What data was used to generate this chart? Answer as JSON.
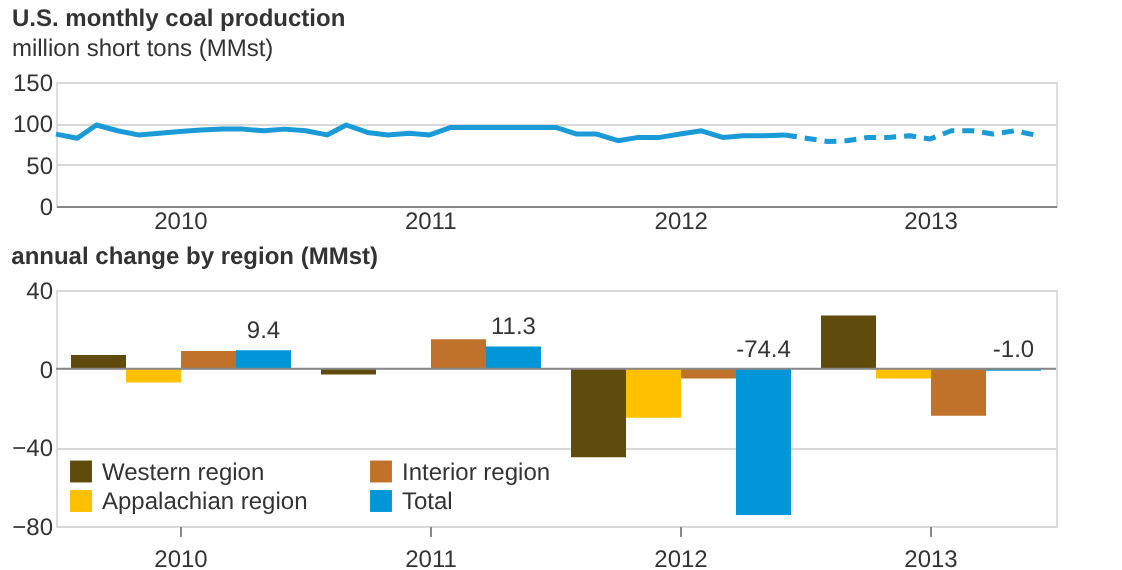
{
  "chart_data": [
    {
      "type": "line",
      "title": "U.S. monthly coal production",
      "subtitle": "million short tons (MMst)",
      "x": [
        "2010-01",
        "2010-02",
        "2010-03",
        "2010-04",
        "2010-05",
        "2010-06",
        "2010-07",
        "2010-08",
        "2010-09",
        "2010-10",
        "2010-11",
        "2010-12",
        "2011-01",
        "2011-02",
        "2011-03",
        "2011-04",
        "2011-05",
        "2011-06",
        "2011-07",
        "2011-08",
        "2011-09",
        "2011-10",
        "2011-11",
        "2011-12",
        "2012-01",
        "2012-02",
        "2012-03",
        "2012-04",
        "2012-05",
        "2012-06",
        "2012-07",
        "2012-08",
        "2012-09",
        "2012-10",
        "2012-11",
        "2012-12",
        "2013-01",
        "2013-02",
        "2013-03",
        "2013-04",
        "2013-05",
        "2013-06",
        "2013-07",
        "2013-08",
        "2013-09",
        "2013-10",
        "2013-11",
        "2013-12"
      ],
      "series": [
        {
          "color": "#1a9ad6",
          "line_style": "solid",
          "values": [
            87,
            82,
            98,
            91,
            86,
            88,
            90,
            92,
            93,
            93,
            91,
            93,
            91,
            86,
            98,
            89,
            86,
            88,
            86,
            95,
            95,
            95,
            95,
            95,
            95,
            87,
            87,
            79,
            83,
            83,
            87,
            91,
            83,
            85,
            85,
            86,
            null,
            null,
            null,
            null,
            null,
            null,
            null,
            null,
            null,
            null,
            null,
            null
          ]
        },
        {
          "color": "#1a9ad6",
          "line_style": "dashed",
          "values": [
            null,
            null,
            null,
            null,
            null,
            null,
            null,
            null,
            null,
            null,
            null,
            null,
            null,
            null,
            null,
            null,
            null,
            null,
            null,
            null,
            null,
            null,
            null,
            null,
            null,
            null,
            null,
            null,
            null,
            null,
            null,
            null,
            null,
            null,
            null,
            86,
            82,
            78,
            79,
            83,
            83,
            85,
            81,
            91,
            91,
            87,
            91,
            86
          ]
        }
      ],
      "xlim": [
        "2010-01",
        "2014-01"
      ],
      "xticks": [
        {
          "value": "2010-07",
          "label": "2010"
        },
        {
          "value": "2011-07",
          "label": "2011"
        },
        {
          "value": "2012-07",
          "label": "2012"
        },
        {
          "value": "2013-07",
          "label": "2013"
        }
      ],
      "ylim": [
        0,
        150
      ],
      "yticks": [
        0,
        50,
        100,
        150
      ],
      "grid": "y",
      "marker": "none"
    },
    {
      "type": "bar",
      "title": "annual change by region (MMst)",
      "categories": [
        "2010",
        "2011",
        "2012",
        "2013"
      ],
      "series": [
        {
          "name": "Western region",
          "color": "#5f4b0b",
          "values": [
            7,
            -3,
            -45,
            27
          ]
        },
        {
          "name": "Appalachian region",
          "color": "#ffc000",
          "values": [
            -7,
            0,
            -25,
            -5
          ]
        },
        {
          "name": "Interior region",
          "color": "#c0722b",
          "values": [
            9,
            15,
            -5,
            -24
          ]
        },
        {
          "name": "Total",
          "color": "#0096d7",
          "values": [
            9.4,
            11.3,
            -74.4,
            -1.0
          ],
          "value_labels": [
            "9.4",
            "11.3",
            "-74.4",
            "-1.0"
          ]
        }
      ],
      "ylim": [
        -80,
        40
      ],
      "yticks": [
        -80,
        -40,
        0,
        40
      ],
      "grid": "y",
      "legend": "bottom left"
    }
  ]
}
